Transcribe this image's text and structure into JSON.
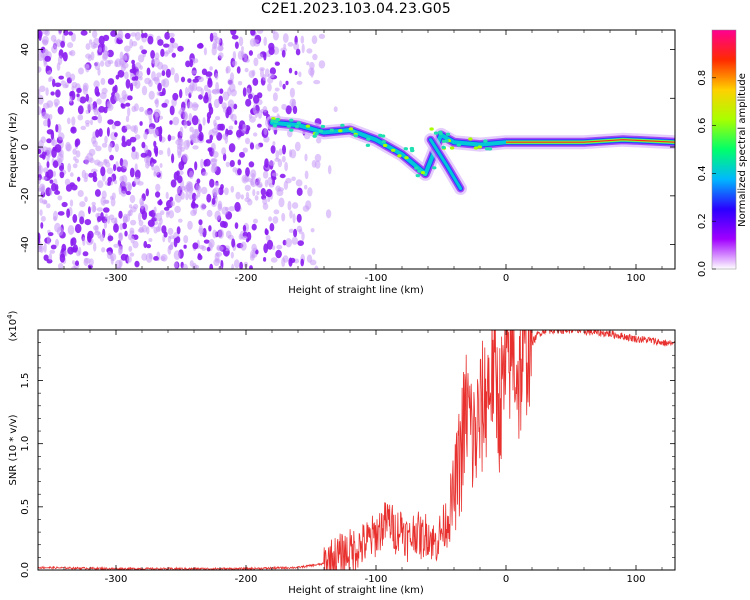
{
  "title": "C2E1.2023.103.04.23.G05",
  "chart_data": [
    {
      "type": "heatmap",
      "xlabel": "Height of straight line (km)",
      "ylabel": "Frequency (Hz)",
      "xlim": [
        -360,
        130
      ],
      "ylim": [
        -50,
        48
      ],
      "x_ticks": [
        -300,
        -200,
        -100,
        0,
        100
      ],
      "y_ticks": [
        -40,
        -20,
        0,
        20,
        40
      ],
      "colorbar": {
        "label": "Normalized spectral amplitude",
        "range": [
          0,
          1
        ],
        "ticks": [
          "0.0",
          "0.2",
          "0.4",
          "0.6",
          "0.8"
        ],
        "colors": [
          "#ffffff",
          "#a100ff",
          "#2a00ff",
          "#00b7ff",
          "#00ff6a",
          "#a8ff00",
          "#ffd000",
          "#ff2a00",
          "#ff0090"
        ]
      },
      "noise_region_x": [
        -360,
        -160
      ],
      "signal_track": [
        {
          "x": -180,
          "y": 10
        },
        {
          "x": -160,
          "y": 9
        },
        {
          "x": -140,
          "y": 6
        },
        {
          "x": -120,
          "y": 7
        },
        {
          "x": -100,
          "y": 3
        },
        {
          "x": -80,
          "y": -3
        },
        {
          "x": -62,
          "y": -11
        },
        {
          "x": -50,
          "y": 5
        },
        {
          "x": -40,
          "y": 2
        },
        {
          "x": -20,
          "y": 1
        },
        {
          "x": 0,
          "y": 2
        },
        {
          "x": 30,
          "y": 2
        },
        {
          "x": 60,
          "y": 2
        },
        {
          "x": 90,
          "y": 3
        },
        {
          "x": 130,
          "y": 2
        }
      ],
      "secondary_track": [
        {
          "x": -58,
          "y": 3
        },
        {
          "x": -45,
          "y": -8
        },
        {
          "x": -35,
          "y": -17
        }
      ]
    },
    {
      "type": "line",
      "xlabel": "Height of straight line (km)",
      "ylabel": "SNR (10 * v/v)",
      "y_scale_label": "(x10",
      "y_scale_exponent": "4",
      "y_scale_suffix": ")",
      "xlim": [
        -360,
        130
      ],
      "ylim": [
        0,
        1.9
      ],
      "x_ticks": [
        -300,
        -200,
        -100,
        0,
        100
      ],
      "y_ticks": [
        "0.0",
        "0.5",
        "1.0",
        "1.5"
      ],
      "line_color": "#e8312e",
      "series": [
        {
          "x": [
            -360,
            -300,
            -250,
            -200,
            -160,
            -140,
            -130,
            -120,
            -110,
            -100,
            -95,
            -90,
            -85,
            -80,
            -75,
            -70,
            -65,
            -60,
            -55,
            -50,
            -45,
            -40,
            -35,
            -30,
            -25,
            -20,
            -15,
            -10,
            -5,
            0,
            5,
            10,
            15,
            20,
            25,
            30,
            40,
            50,
            60,
            70,
            80,
            90,
            100,
            110,
            120,
            130
          ],
          "values": [
            0.02,
            0.01,
            0.01,
            0.01,
            0.02,
            0.05,
            0.1,
            0.15,
            0.2,
            0.28,
            0.35,
            0.4,
            0.3,
            0.35,
            0.22,
            0.32,
            0.25,
            0.3,
            0.2,
            0.3,
            0.4,
            0.6,
            0.9,
            1.3,
            1.0,
            1.2,
            1.4,
            1.6,
            1.3,
            1.55,
            1.75,
            1.5,
            1.75,
            1.8,
            1.87,
            1.9,
            1.9,
            1.9,
            1.89,
            1.88,
            1.87,
            1.85,
            1.83,
            1.82,
            1.8,
            1.79
          ]
        }
      ]
    }
  ]
}
